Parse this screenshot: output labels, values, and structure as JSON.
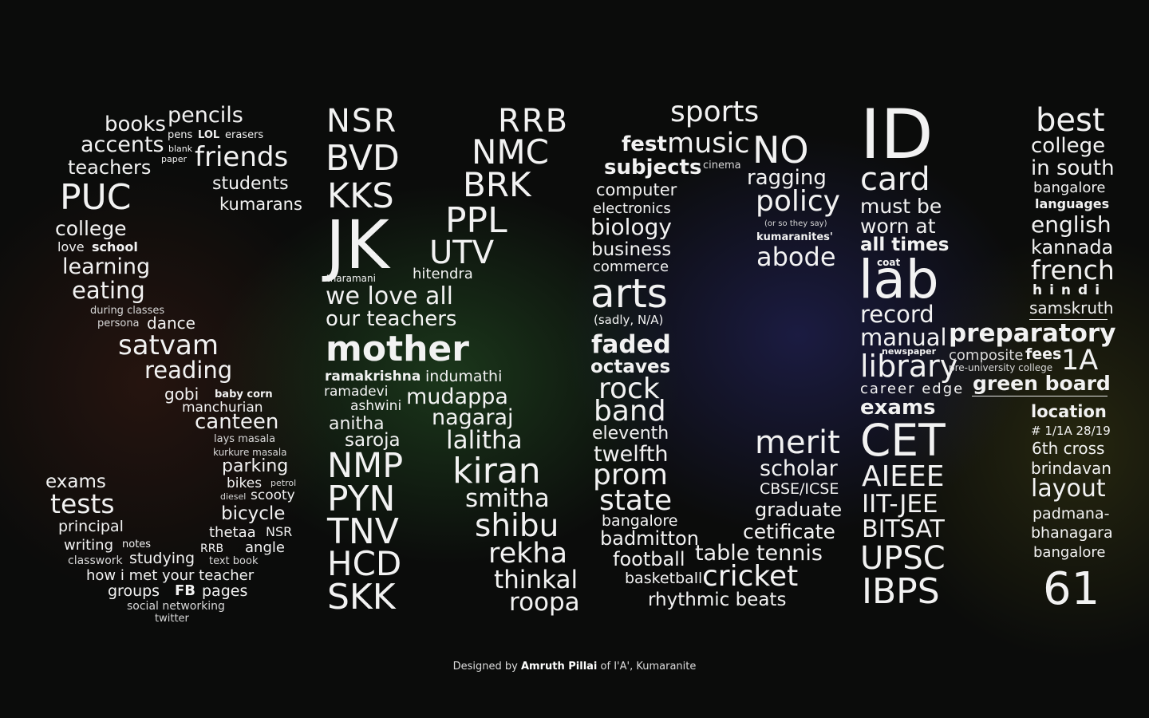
{
  "words": {
    "w1": "pencils",
    "w2": "books",
    "w3": "pens",
    "w4": "LOL",
    "w5": "erasers",
    "w6": "accents",
    "w7": "blank",
    "w8": "paper",
    "w9": "friends",
    "w10": "teachers",
    "w11": "students",
    "w12": "PUC",
    "w13": "kumarans",
    "w14": "college",
    "w15": "love",
    "w16": "school",
    "w17": "learning",
    "w18": "eating",
    "w19": "during classes",
    "w20": "persona",
    "w21": "dance",
    "w22": "satvam",
    "w23": "reading",
    "w24": "gobi",
    "w25": "baby corn",
    "w26": "manchurian",
    "w27": "canteen",
    "w28": "lays masala",
    "w29": "kurkure masala",
    "w30": "parking",
    "w31": "bikes",
    "w32": "petrol",
    "w33": "diesel",
    "w34": "scooty",
    "w35": "exams",
    "w36": "tests",
    "w37": "bicycle",
    "w38": "principal",
    "w39": "thetaa",
    "w40": "NSR",
    "w41": "writing",
    "w42": "notes",
    "w43": "RRB",
    "w44": "angle",
    "w45": "classwork",
    "w46": "studying",
    "w47": "text book",
    "w48": "how i met your teacher",
    "w49": "groups",
    "w50": "FB",
    "w51": "pages",
    "w52": "social networking",
    "w53": "twitter",
    "c1": "NSR",
    "c2": "RRB",
    "c3": "BVD",
    "c4": "NMC",
    "c5": "KKS",
    "c6": "BRK",
    "c7": "JK",
    "c8": "PPL",
    "c9": "UTV",
    "c10": "tharamani",
    "c11": "hitendra",
    "c12": "we love all",
    "c13": "our teachers",
    "c14": "mother",
    "c15": "ramakrishna",
    "c16": "indumathi",
    "c17": "ramadevi",
    "c18": "ashwini",
    "c19": "mudappa",
    "c20": "nagaraj",
    "c21": "anitha",
    "c22": "saroja",
    "c23": "lalitha",
    "c24": "NMP",
    "c25": "kiran",
    "c26": "PYN",
    "c27": "smitha",
    "c28": "TNV",
    "c29": "shibu",
    "c30": "HCD",
    "c31": "rekha",
    "c32": "thinkal",
    "c33": "SKK",
    "c34": "roopa",
    "d1": "sports",
    "d2": "fest",
    "d3": "music",
    "d4": "NO",
    "d5": "subjects",
    "d6": "cinema",
    "d7": "ragging",
    "d8": "computer",
    "d9": "policy",
    "d10": "electronics",
    "d11": "(or so they say)",
    "d12": "biology",
    "d13": "kumaranites'",
    "d14": "business",
    "d15": "abode",
    "d16": "commerce",
    "d17": "arts",
    "d18": "(sadly, N/A)",
    "d19": "faded",
    "d20": "octaves",
    "d21": "rock",
    "d22": "band",
    "d23": "eleventh",
    "d24": "merit",
    "d25": "twelfth",
    "d26": "scholar",
    "d27": "prom",
    "d28": "CBSE/ICSE",
    "d29": "state",
    "d30": "graduate",
    "d31": "bangalore",
    "d32": "cetificate",
    "d33": "badmitton",
    "d34": "football",
    "d35": "table tennis",
    "d36": "basketball",
    "d37": "cricket",
    "d38": "rhythmic beats",
    "e1": "ID",
    "e2": "card",
    "e3": "must be",
    "e4": "worn at",
    "e5": "all times",
    "e6": "coat",
    "e7": "lab",
    "e8": "record",
    "e9": "manual",
    "e10": "newspaper",
    "e11": "library",
    "e12": "career edge",
    "e13": "exams",
    "e14": "CET",
    "e15": "AIEEE",
    "e16": "IIT-JEE",
    "e17": "BITSAT",
    "e18": "UPSC",
    "e19": "IBPS",
    "f1": "best",
    "f2": "college",
    "f3": "in south",
    "f4": "bangalore",
    "f5": "languages",
    "f6": "english",
    "f7": "kannada",
    "f8": "french",
    "f9": "hindi",
    "f10": "samskruth",
    "f11": "preparatory",
    "f12": "composite",
    "f13": "fees",
    "f14": "pre-university college",
    "f15": "1A",
    "f16": "green board",
    "f17": "location",
    "f18": "# 1/1A 28/19",
    "f19": "6th cross",
    "f20": "brindavan",
    "f21": "layout",
    "f22": "padmana-",
    "f23": "bhanagara",
    "f24": "bangalore",
    "f25": "61"
  },
  "credit": {
    "prefix": "Designed by",
    "name": "Amruth Pillai",
    "suffix": "of I'A', Kumaranite"
  }
}
